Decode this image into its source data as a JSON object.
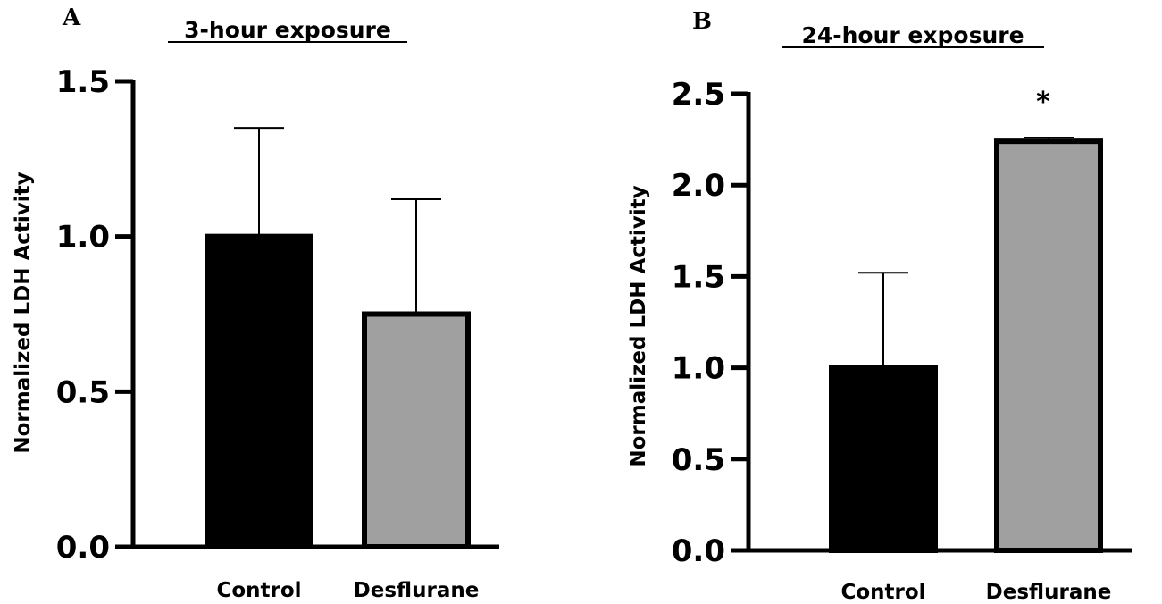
{
  "chart_data": [
    {
      "panel": "A",
      "type": "bar",
      "title": "3-hour exposure",
      "ylabel": "Normalized LDH Activity",
      "xlabel": "",
      "categories": [
        "Control",
        "Desflurane"
      ],
      "values": [
        1.0,
        0.75
      ],
      "error": [
        0.35,
        0.37
      ],
      "bar_colors": [
        "#000000",
        "#a0a0a0"
      ],
      "ylim": [
        0,
        1.5
      ],
      "yticks": [
        0.0,
        0.5,
        1.0,
        1.5
      ],
      "ytick_labels": [
        "0.0",
        "0.5",
        "1.0",
        "1.5"
      ],
      "annotations": [
        "",
        ""
      ],
      "grid": false
    },
    {
      "panel": "B",
      "type": "bar",
      "title": "24-hour exposure",
      "ylabel": "Normalized LDH Activity",
      "xlabel": "",
      "categories": [
        "Control",
        "Desflurane"
      ],
      "values": [
        1.0,
        2.24
      ],
      "error": [
        0.52,
        0.02
      ],
      "bar_colors": [
        "#000000",
        "#a0a0a0"
      ],
      "ylim": [
        0,
        2.5
      ],
      "yticks": [
        0.0,
        0.5,
        1.0,
        1.5,
        2.0,
        2.5
      ],
      "ytick_labels": [
        "0.0",
        "0.5",
        "1.0",
        "1.5",
        "2.0",
        "2.5"
      ],
      "annotations": [
        "",
        "*"
      ],
      "grid": false
    }
  ]
}
